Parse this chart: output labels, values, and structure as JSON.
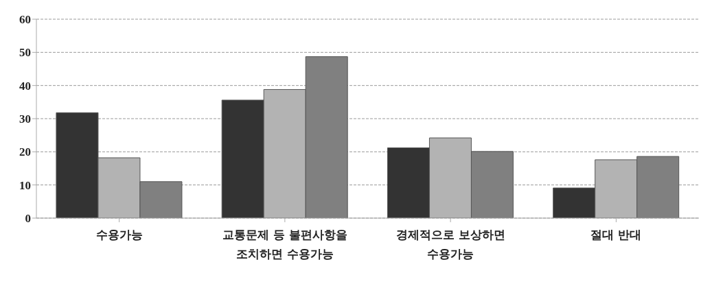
{
  "chart_data": {
    "type": "bar",
    "categories": [
      "수용가능",
      "교통문제 등 불편사항을\n조치하면 수용가능",
      "경제적으로 보상하면\n수용가능",
      "절대 반대"
    ],
    "series": [
      {
        "color": "#333333",
        "values": [
          31.8,
          35.6,
          21.2,
          9.1
        ]
      },
      {
        "color": "#b3b3b3",
        "values": [
          18.2,
          38.8,
          24.2,
          17.6
        ]
      },
      {
        "color": "#808080",
        "values": [
          11.0,
          48.7,
          20.1,
          18.6
        ]
      }
    ],
    "ylim": [
      0,
      60
    ],
    "yticks": [
      0,
      10,
      20,
      30,
      40,
      50,
      60
    ],
    "grid": "y"
  }
}
